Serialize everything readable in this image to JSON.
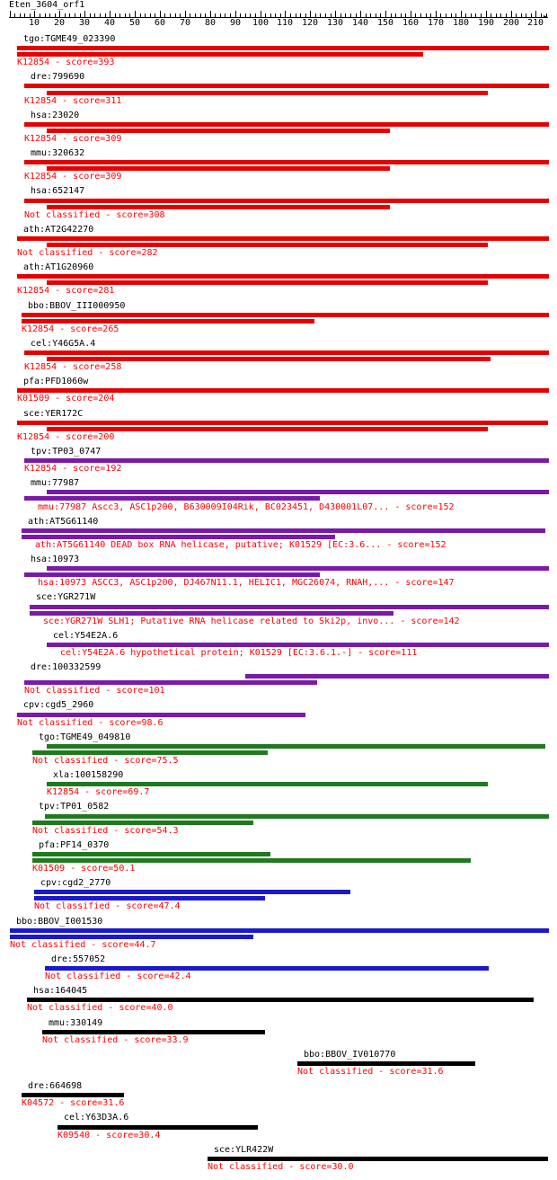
{
  "query": {
    "title": "Eten_3604_orf1"
  },
  "ruler": {
    "min": 0,
    "max": 215,
    "labels": [
      10,
      20,
      30,
      40,
      50,
      60,
      70,
      80,
      90,
      100,
      110,
      120,
      130,
      140,
      150,
      160,
      170,
      180,
      190,
      200,
      210
    ]
  },
  "colors": {
    "red": "#e60000",
    "purple": "#7a1aa8",
    "green": "#1f7a1f",
    "blue": "#1a1acc",
    "black": "#000000",
    "text_desc": "#ff0000"
  },
  "hits": [
    {
      "name": "tgo:TGME49_023390",
      "desc": "K12854 - score=393",
      "color": "red",
      "bars": [
        {
          "start": 3,
          "end": 217
        },
        {
          "start": 3,
          "end": 165
        }
      ]
    },
    {
      "name": "dre:799690",
      "desc": "K12854 - score=311",
      "color": "red",
      "bars": [
        {
          "start": 6,
          "end": 217
        },
        {
          "start": 15,
          "end": 191
        }
      ]
    },
    {
      "name": "hsa:23020",
      "desc": "K12854 - score=309",
      "color": "red",
      "bars": [
        {
          "start": 6,
          "end": 217
        },
        {
          "start": 15,
          "end": 152
        }
      ]
    },
    {
      "name": "mmu:320632",
      "desc": "K12854 - score=309",
      "color": "red",
      "bars": [
        {
          "start": 6,
          "end": 217
        },
        {
          "start": 15,
          "end": 152
        }
      ]
    },
    {
      "name": "hsa:652147",
      "desc": "Not classified - score=308",
      "color": "red",
      "bars": [
        {
          "start": 6,
          "end": 217
        },
        {
          "start": 15,
          "end": 152
        }
      ]
    },
    {
      "name": "ath:AT2G42270",
      "desc": "Not classified - score=282",
      "color": "red",
      "bars": [
        {
          "start": 3,
          "end": 217
        },
        {
          "start": 15,
          "end": 191
        }
      ]
    },
    {
      "name": "ath:AT1G20960",
      "desc": "K12854 - score=281",
      "color": "red",
      "bars": [
        {
          "start": 3,
          "end": 217
        },
        {
          "start": 15,
          "end": 191
        }
      ]
    },
    {
      "name": "bbo:BBOV_III000950",
      "desc": "K12854 - score=265",
      "color": "red",
      "bars": [
        {
          "start": 5,
          "end": 217
        },
        {
          "start": 5,
          "end": 122
        }
      ]
    },
    {
      "name": "cel:Y46G5A.4",
      "desc": "K12854 - score=258",
      "color": "red",
      "bars": [
        {
          "start": 6,
          "end": 217
        },
        {
          "start": 15,
          "end": 192
        }
      ]
    },
    {
      "name": "pfa:PFD1060w",
      "desc": "K01509 - score=204",
      "color": "red",
      "bars": [
        {
          "start": 3,
          "end": 217
        }
      ]
    },
    {
      "name": "sce:YER172C",
      "desc": "K12854 - score=200",
      "color": "red",
      "bars": [
        {
          "start": 3,
          "end": 215
        },
        {
          "start": 15,
          "end": 191
        }
      ]
    },
    {
      "name": "tpv:TP03_0747",
      "desc": "K12854 - score=192",
      "color": "purple",
      "bars": [
        {
          "start": 6,
          "end": 217
        }
      ]
    },
    {
      "name": "mmu:77987",
      "desc": "mmu:77987  Ascc3, ASC1p200, B630009I04Rik, BC023451, D430001L07... - score=152",
      "color": "purple",
      "bars": [
        {
          "start": 15,
          "end": 217
        },
        {
          "start": 6,
          "end": 124
        }
      ]
    },
    {
      "name": "ath:AT5G61140",
      "desc": "ath:AT5G61140  DEAD box RNA helicase, putative; K01529  [EC:3.6... - score=152",
      "color": "purple",
      "bars": [
        {
          "start": 5,
          "end": 214
        },
        {
          "start": 5,
          "end": 130
        }
      ]
    },
    {
      "name": "hsa:10973",
      "desc": "hsa:10973  ASCC3, ASC1p200, DJ467N11.1, HELIC1, MGC26074, RNAH,... - score=147",
      "color": "purple",
      "bars": [
        {
          "start": 15,
          "end": 217
        },
        {
          "start": 6,
          "end": 124
        }
      ]
    },
    {
      "name": "sce:YGR271W",
      "desc": "sce:YGR271W  SLH1; Putative RNA helicase related to Ski2p, invo... - score=142",
      "color": "purple",
      "bars": [
        {
          "start": 8,
          "end": 217
        },
        {
          "start": 8,
          "end": 153
        }
      ]
    },
    {
      "name": "cel:Y54E2A.6",
      "desc": "cel:Y54E2A.6  hypothetical protein; K01529  [EC:3.6.1.-] - score=111",
      "color": "purple",
      "bars": [
        {
          "start": 15,
          "end": 217
        }
      ]
    },
    {
      "name": "dre:100332599",
      "desc": "Not classified - score=101",
      "color": "purple",
      "bars": [
        {
          "start": 94,
          "end": 215
        },
        {
          "start": 6,
          "end": 123
        }
      ]
    },
    {
      "name": "cpv:cgd5_2960",
      "desc": "Not classified - score=98.6",
      "color": "purple",
      "bars": [
        {
          "start": 3,
          "end": 118
        }
      ]
    },
    {
      "name": "tgo:TGME49_049810",
      "desc": "Not classified - score=75.5",
      "color": "green",
      "bars": [
        {
          "start": 15,
          "end": 214
        },
        {
          "start": 9,
          "end": 103
        }
      ]
    },
    {
      "name": "xla:100158290",
      "desc": "K12854 - score=69.7",
      "color": "green",
      "bars": [
        {
          "start": 15,
          "end": 191
        }
      ]
    },
    {
      "name": "tpv:TP01_0582",
      "desc": "Not classified - score=54.3",
      "color": "green",
      "bars": [
        {
          "start": 14,
          "end": 215
        },
        {
          "start": 9,
          "end": 97
        }
      ]
    },
    {
      "name": "pfa:PF14_0370",
      "desc": "K01509 - score=50.1",
      "color": "green",
      "bars": [
        {
          "start": 9,
          "end": 104
        },
        {
          "start": 9,
          "end": 184
        }
      ]
    },
    {
      "name": "cpv:cgd2_2770",
      "desc": "Not classified - score=47.4",
      "color": "blue",
      "bars": [
        {
          "start": 10,
          "end": 136
        },
        {
          "start": 10,
          "end": 102
        }
      ]
    },
    {
      "name": "bbo:BBOV_I001530",
      "desc": "Not classified - score=44.7",
      "color": "blue",
      "bars": [
        {
          "start": 0,
          "end": 217
        },
        {
          "start": 0,
          "end": 97
        }
      ]
    },
    {
      "name": "dre:557052",
      "desc": "Not classified - score=42.4",
      "color": "blue",
      "bars": [
        {
          "start": 14,
          "end": 191
        }
      ]
    },
    {
      "name": "hsa:164045",
      "desc": "Not classified - score=40.0",
      "color": "black",
      "bars": [
        {
          "start": 7,
          "end": 209
        }
      ]
    },
    {
      "name": "mmu:330149",
      "desc": "Not classified - score=33.9",
      "color": "black",
      "bars": [
        {
          "start": 13,
          "end": 102
        }
      ]
    },
    {
      "name": "bbo:BBOV_IV010770",
      "desc": "Not classified - score=31.6",
      "color": "black",
      "bars": [
        {
          "start": 115,
          "end": 186
        }
      ]
    },
    {
      "name": "dre:664698",
      "desc": "K04572 - score=31.6",
      "color": "black",
      "bars": [
        {
          "start": 5,
          "end": 46
        }
      ]
    },
    {
      "name": "cel:Y63D3A.6",
      "desc": "K09540 - score=30.4",
      "color": "black",
      "bars": [
        {
          "start": 19,
          "end": 99
        }
      ]
    },
    {
      "name": "sce:YLR422W",
      "desc": "Not classified - score=30.0",
      "color": "black",
      "bars": [
        {
          "start": 79,
          "end": 215
        }
      ]
    }
  ]
}
